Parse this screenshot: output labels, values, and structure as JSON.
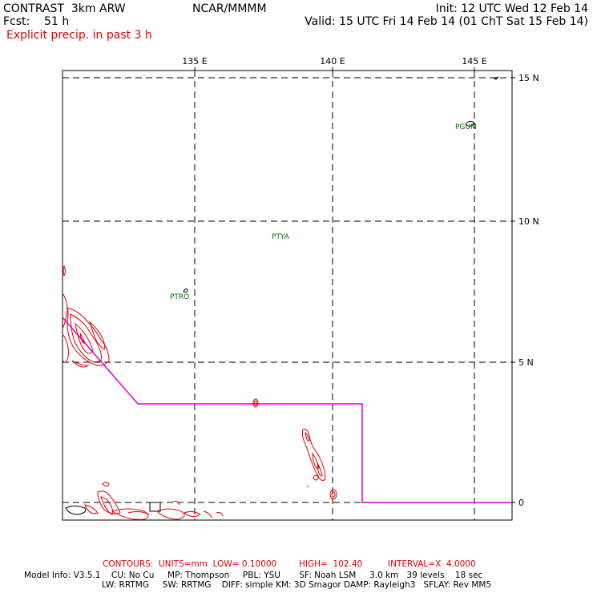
{
  "header": {
    "model": "CONTRAST  3km ARW",
    "org": "NCAR/MMMM",
    "init": "Init: 12 UTC Wed 12 Feb 14",
    "fcst": "Fcst:    51 h",
    "valid": "Valid: 15 UTC Fri 14 Feb 14 (01 ChT Sat 15 Feb 14)",
    "field": "Explicit precip. in past 3 h"
  },
  "axes": {
    "lon_labels": [
      "135 E",
      "140 E",
      "145 E"
    ],
    "lat_labels": [
      "15 N",
      "10 N",
      "5 N",
      "0"
    ]
  },
  "stations": [
    "PGUM",
    "PTYA",
    "PTRO"
  ],
  "contour_info": {
    "contours": "CONTOURS:  UNITS=mm  LOW= 0.10000",
    "high": "HIGH=  102.40",
    "interval": "INTERVAL=X  4.0000"
  },
  "model_info": {
    "line1": "Model Info: V3.5.1    CU: No Cu     MP: Thompson     PBL: YSU       SF: Noah LSM     3.0 km   39 levels    18 sec",
    "line2": "LW: RRTMG     SW: RRTMG    DIFF: simple KM: 3D Smagor DAMP: Rayleigh3   SFLAY: Rev MM5"
  },
  "colors": {
    "precip_contour": "#e00000",
    "boundary_line": "#e000e0",
    "station_label": "#007000",
    "grid": "#000000"
  }
}
